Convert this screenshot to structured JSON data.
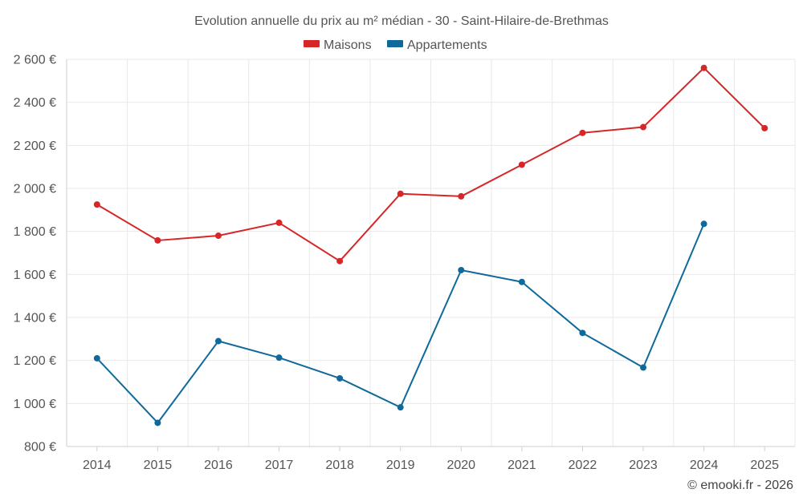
{
  "chart_data": {
    "type": "line",
    "title": "Evolution annuelle du prix au m² médian - 30 - Saint-Hilaire-de-Brethmas",
    "categories": [
      "2014",
      "2015",
      "2016",
      "2017",
      "2018",
      "2019",
      "2020",
      "2021",
      "2022",
      "2023",
      "2024",
      "2025"
    ],
    "ylim": [
      800,
      2600
    ],
    "yticks": [
      800,
      1000,
      1200,
      1400,
      1600,
      1800,
      2000,
      2200,
      2400,
      2600
    ],
    "ytick_labels": [
      "800 €",
      "1 000 €",
      "1 200 €",
      "1 400 €",
      "1 600 €",
      "1 800 €",
      "2 000 €",
      "2 200 €",
      "2 400 €",
      "2 600 €"
    ],
    "legend_position": "top-center",
    "grid": true,
    "series": [
      {
        "name": "Maisons",
        "color": "#d62728",
        "values": [
          1925,
          1758,
          1780,
          1840,
          1662,
          1975,
          1963,
          2110,
          2258,
          2285,
          2560,
          2280
        ]
      },
      {
        "name": "Appartements",
        "color": "#0f6a9b",
        "values": [
          1210,
          910,
          1290,
          1213,
          1117,
          982,
          1620,
          1565,
          1328,
          1167,
          1835,
          null
        ]
      }
    ]
  },
  "credit": "© emooki.fr - 2026"
}
